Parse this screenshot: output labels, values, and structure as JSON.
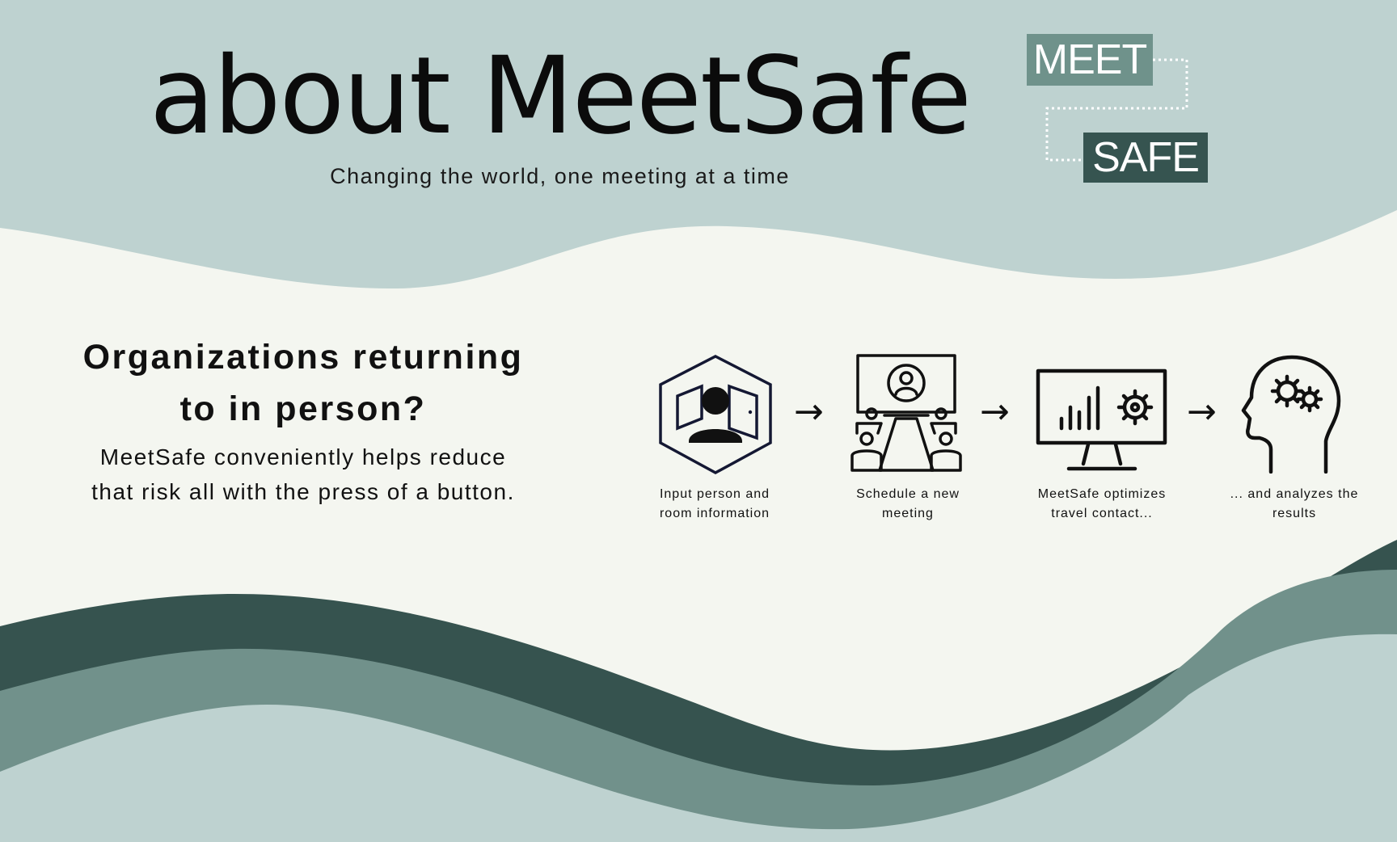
{
  "header": {
    "title": "about MeetSafe",
    "subtitle": "Changing the world, one meeting at a time"
  },
  "logo": {
    "word_top": "MEET",
    "word_bottom": "SAFE"
  },
  "pitch": {
    "heading_line1": "Organizations returning",
    "heading_line2": "to in person?",
    "body_line1": "MeetSafe conveniently helps reduce",
    "body_line2": "that risk all with the press of a button."
  },
  "steps": [
    {
      "icon": "person-in-door-icon",
      "label_line1": "Input person and",
      "label_line2": "room information"
    },
    {
      "icon": "meeting-room-icon",
      "label_line1": "Schedule a new",
      "label_line2": "meeting"
    },
    {
      "icon": "analytics-monitor-icon",
      "label_line1": "MeetSafe optimizes",
      "label_line2": "travel contact..."
    },
    {
      "icon": "head-gears-icon",
      "label_line1": "... and analyzes the",
      "label_line2": "results"
    }
  ],
  "arrow_glyph": "→",
  "colors": {
    "background": "#f4f6f0",
    "wave_light": "#bed2d0",
    "wave_mid": "#71918b",
    "wave_dark": "#36534f",
    "ink": "#111111"
  }
}
